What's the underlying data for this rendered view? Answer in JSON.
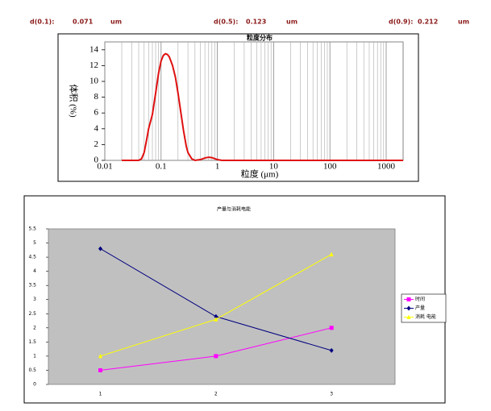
{
  "header": {
    "items": [
      {
        "label": "d(0.1):",
        "value": 0.071,
        "unit": "um"
      },
      {
        "label": "d(0.5):",
        "value": 0.123,
        "unit": "um"
      },
      {
        "label": "d(0.9):",
        "value": 0.212,
        "unit": "um"
      }
    ]
  },
  "chart_data": [
    {
      "type": "line",
      "title": "粒度分布",
      "x_label": "粒度 (μm)",
      "y_label": "体积 (%)",
      "x": [
        0.02,
        0.03,
        0.04,
        0.045,
        0.05,
        0.055,
        0.06,
        0.07,
        0.08,
        0.09,
        0.1,
        0.11,
        0.12,
        0.13,
        0.14,
        0.16,
        0.18,
        0.2,
        0.22,
        0.25,
        0.28,
        0.3,
        0.35,
        0.4,
        0.5,
        0.6,
        0.7,
        0.8,
        1,
        1.2,
        1.5,
        2,
        5,
        10,
        100,
        1000,
        2000
      ],
      "values": [
        0,
        0,
        0,
        0.2,
        1,
        2.5,
        4,
        5.8,
        8.5,
        11,
        12.6,
        13.3,
        13.5,
        13.4,
        13.1,
        12,
        10.5,
        8.5,
        6.5,
        3.8,
        1.8,
        1,
        0.2,
        0,
        0.1,
        0.3,
        0.4,
        0.35,
        0.1,
        0,
        0,
        0,
        0,
        0,
        0,
        0,
        0
      ],
      "color": "#e01010",
      "xlog": true,
      "xlim": [
        0.01,
        2000
      ],
      "xticks": [
        0.01,
        0.1,
        1,
        10,
        100,
        1000
      ],
      "ylim": [
        0,
        15
      ],
      "yticks": [
        0,
        2,
        4,
        6,
        8,
        10,
        12,
        14
      ],
      "grid": "x"
    },
    {
      "type": "line",
      "title": "产量与消耗电能",
      "categories": [
        "1",
        "2",
        "3"
      ],
      "series": [
        {
          "name": "时间",
          "color": "#ff00ff",
          "marker": "square",
          "values": [
            0.5,
            1,
            2
          ]
        },
        {
          "name": "产量",
          "color": "#000080",
          "marker": "diamond",
          "values": [
            4.8,
            2.4,
            1.2
          ]
        },
        {
          "name": "消耗 电能",
          "color": "#ffff00",
          "marker": "triangle",
          "values": [
            1,
            2.3,
            4.6
          ]
        }
      ],
      "ylim": [
        0,
        5.5
      ],
      "yticks": [
        0,
        0.5,
        1,
        1.5,
        2,
        2.5,
        3,
        3.5,
        4,
        4.5,
        5,
        5.5
      ],
      "plot_background": "#c0c0c0",
      "legend": "right"
    }
  ]
}
